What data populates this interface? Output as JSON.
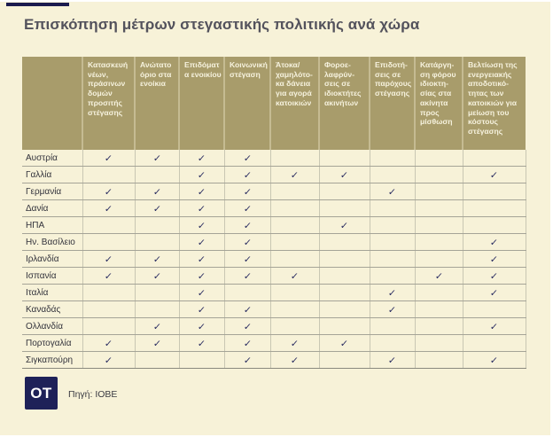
{
  "title": "Επισκόπηση μέτρων στεγαστικής πολιτικής ανά χώρα",
  "chart_data": {
    "type": "table",
    "title": "Επισκόπηση μέτρων στεγαστικής πολιτικής ανά χώρα",
    "check_glyph": "✓",
    "columns": [
      "Κατασκευή νέων, πράσινων δομών προσιτής στέγασης",
      "Ανώτατο όριο στα ενοίκια",
      "Επιδόματα ενοικίου",
      "Κοινωνική στέγαση",
      "Άτοκα/ χαμηλότο-κα δάνεια για αγορά κατοικιών",
      "Φοροε-λαφρύν-σεις σε ιδιοκτήτες ακινήτων",
      "Επιδοτή-σεις σε παρόχους στέγασης",
      "Κατάργη-ση φόρου ιδιοκτη-σίας στα ακίνητα προς μίσθωση",
      "Βελτίωση της ενεργειακής αποδοτικό-τητας των κατοικιών για μείωση του κόστους στέγασης"
    ],
    "rows": [
      {
        "country": "Αυστρία",
        "values": [
          1,
          1,
          1,
          1,
          0,
          0,
          0,
          0,
          0
        ]
      },
      {
        "country": "Γαλλία",
        "values": [
          0,
          0,
          1,
          1,
          1,
          1,
          0,
          0,
          1
        ]
      },
      {
        "country": "Γερμανία",
        "values": [
          1,
          1,
          1,
          1,
          0,
          0,
          1,
          0,
          0
        ]
      },
      {
        "country": "Δανία",
        "values": [
          1,
          1,
          1,
          1,
          0,
          0,
          0,
          0,
          0
        ]
      },
      {
        "country": "ΗΠΑ",
        "values": [
          0,
          0,
          1,
          1,
          0,
          1,
          0,
          0,
          0
        ]
      },
      {
        "country": "Ην. Βασίλειο",
        "values": [
          0,
          0,
          1,
          1,
          0,
          0,
          0,
          0,
          1
        ]
      },
      {
        "country": "Ιρλανδία",
        "values": [
          1,
          1,
          1,
          1,
          0,
          0,
          0,
          0,
          1
        ]
      },
      {
        "country": "Ισπανία",
        "values": [
          1,
          1,
          1,
          1,
          1,
          0,
          0,
          1,
          1
        ]
      },
      {
        "country": "Ιταλία",
        "values": [
          0,
          0,
          1,
          0,
          0,
          0,
          1,
          0,
          1
        ]
      },
      {
        "country": "Καναδάς",
        "values": [
          0,
          0,
          1,
          1,
          0,
          0,
          1,
          0,
          0
        ]
      },
      {
        "country": "Ολλανδία",
        "values": [
          0,
          1,
          1,
          1,
          0,
          0,
          0,
          0,
          1
        ]
      },
      {
        "country": "Πορτογαλία",
        "values": [
          1,
          1,
          1,
          1,
          1,
          1,
          0,
          0,
          0
        ]
      },
      {
        "country": "Σιγκαπούρη",
        "values": [
          1,
          0,
          0,
          1,
          1,
          0,
          1,
          0,
          1
        ]
      }
    ],
    "source": "Πηγή: ΙΟΒΕ"
  },
  "footer": {
    "logo_text": "OT",
    "source_label": "Πηγή: ΙΟΒΕ"
  },
  "colors": {
    "background": "#f7f2d8",
    "header_bg": "#a89c6b",
    "header_text": "#f6f2de",
    "accent_navy": "#1d2059",
    "title_text": "#53525c"
  }
}
